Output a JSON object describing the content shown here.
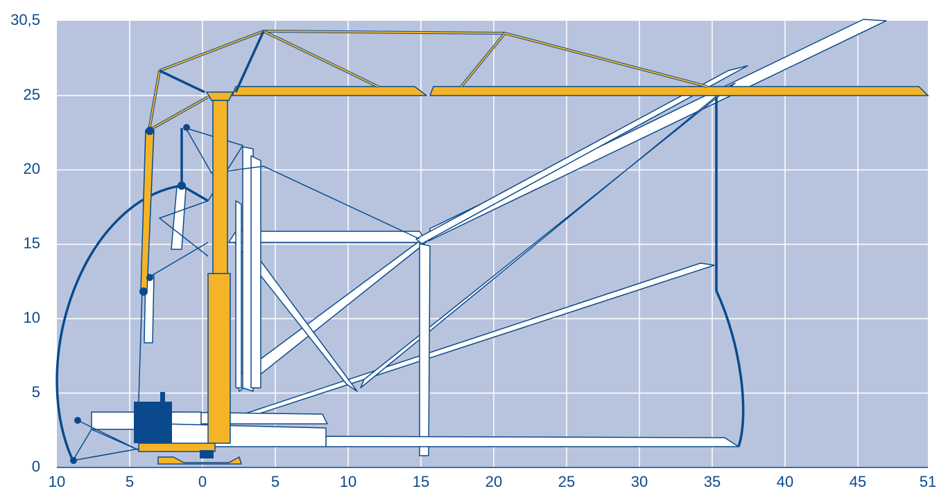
{
  "x_axis": {
    "ticks": [
      "10",
      "5",
      "0",
      "5",
      "10",
      "15",
      "20",
      "25",
      "30",
      "35",
      "40",
      "45",
      "51"
    ]
  },
  "y_axis": {
    "ticks": [
      "0",
      "5",
      "10",
      "15",
      "20",
      "25",
      "30,5"
    ]
  }
}
